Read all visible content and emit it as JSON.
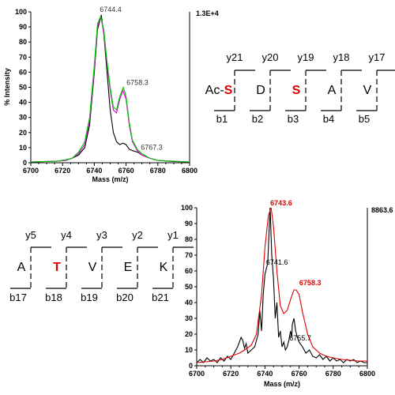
{
  "chart_data": [
    {
      "type": "line",
      "xlabel": "Mass (m/z)",
      "ylabel": "% Intensity",
      "scale_label": "1.3E+4",
      "xlim": [
        6700,
        6800
      ],
      "ylim": [
        0,
        100
      ],
      "x_ticks": [
        "6700",
        "6720",
        "6740",
        "6760",
        "6780",
        "6800"
      ],
      "y_ticks": [
        "0",
        "10",
        "20",
        "30",
        "40",
        "50",
        "60",
        "70",
        "80",
        "90",
        "100"
      ],
      "series": [
        {
          "color": "#000000",
          "points": [
            [
              6700,
              0.5
            ],
            [
              6716,
              1
            ],
            [
              6722,
              1.5
            ],
            [
              6726,
              3
            ],
            [
              6730,
              5
            ],
            [
              6734,
              10
            ],
            [
              6737,
              25
            ],
            [
              6740,
              60
            ],
            [
              6742,
              88
            ],
            [
              6744.4,
              98
            ],
            [
              6746,
              85
            ],
            [
              6748,
              60
            ],
            [
              6750,
              35
            ],
            [
              6752,
              20
            ],
            [
              6754,
              14
            ],
            [
              6756,
              12
            ],
            [
              6758,
              13
            ],
            [
              6760,
              12
            ],
            [
              6762,
              9
            ],
            [
              6764,
              8
            ],
            [
              6767.3,
              7
            ],
            [
              6770,
              5
            ],
            [
              6775,
              3
            ],
            [
              6780,
              1.5
            ],
            [
              6790,
              0.8
            ],
            [
              6800,
              0.5
            ]
          ]
        },
        {
          "color": "#dd00dd",
          "points": [
            [
              6700,
              0.5
            ],
            [
              6716,
              1
            ],
            [
              6722,
              1.5
            ],
            [
              6726,
              3
            ],
            [
              6730,
              6
            ],
            [
              6734,
              12
            ],
            [
              6737,
              28
            ],
            [
              6740,
              62
            ],
            [
              6742,
              90
            ],
            [
              6744,
              97
            ],
            [
              6746,
              86
            ],
            [
              6748,
              65
            ],
            [
              6750,
              48
            ],
            [
              6752,
              35
            ],
            [
              6754,
              33
            ],
            [
              6756,
              42
            ],
            [
              6758,
              48
            ],
            [
              6760,
              42
            ],
            [
              6762,
              25
            ],
            [
              6764,
              14
            ],
            [
              6767,
              8
            ],
            [
              6770,
              5
            ],
            [
              6775,
              3
            ],
            [
              6780,
              1.5
            ],
            [
              6800,
              0.5
            ]
          ]
        },
        {
          "color": "#00cc00",
          "points": [
            [
              6700,
              0.5
            ],
            [
              6716,
              1
            ],
            [
              6722,
              2
            ],
            [
              6726,
              3
            ],
            [
              6730,
              7
            ],
            [
              6734,
              14
            ],
            [
              6737,
              30
            ],
            [
              6740,
              65
            ],
            [
              6742,
              92
            ],
            [
              6744,
              97
            ],
            [
              6746,
              88
            ],
            [
              6748,
              67
            ],
            [
              6750,
              50
            ],
            [
              6752,
              37
            ],
            [
              6754,
              35
            ],
            [
              6756,
              44
            ],
            [
              6758.3,
              50
            ],
            [
              6760,
              44
            ],
            [
              6762,
              27
            ],
            [
              6764,
              15
            ],
            [
              6767,
              9
            ],
            [
              6770,
              6
            ],
            [
              6775,
              3
            ],
            [
              6780,
              1.5
            ],
            [
              6800,
              0.5
            ]
          ]
        }
      ],
      "annotations": [
        {
          "text": "6744.4",
          "x": 6744.4,
          "y": 98
        },
        {
          "text": "6758.3",
          "x": 6758.3,
          "y": 50
        },
        {
          "text": "6767.3",
          "x": 6767.3,
          "y": 7
        }
      ]
    },
    {
      "type": "line",
      "xlabel": "Mass (m/z)",
      "ylabel": "",
      "scale_label": "8863.6",
      "xlim": [
        6700,
        6800
      ],
      "ylim": [
        0,
        100
      ],
      "x_ticks": [
        "6700",
        "6720",
        "6740",
        "6760",
        "6780",
        "6800"
      ],
      "y_ticks": [
        "0",
        "10",
        "20",
        "30",
        "40",
        "50",
        "60",
        "70",
        "80",
        "90",
        "100"
      ],
      "series": [
        {
          "color": "#000000",
          "points": [
            [
              6700,
              2
            ],
            [
              6702,
              4
            ],
            [
              6704,
              2
            ],
            [
              6706,
              5
            ],
            [
              6708,
              3
            ],
            [
              6710,
              4
            ],
            [
              6712,
              2
            ],
            [
              6714,
              5
            ],
            [
              6716,
              3
            ],
            [
              6718,
              6
            ],
            [
              6720,
              4
            ],
            [
              6722,
              8
            ],
            [
              6724,
              12
            ],
            [
              6726,
              18
            ],
            [
              6727,
              16
            ],
            [
              6728,
              11
            ],
            [
              6729,
              14
            ],
            [
              6730,
              8
            ],
            [
              6732,
              10
            ],
            [
              6734,
              12
            ],
            [
              6736,
              20
            ],
            [
              6737,
              35
            ],
            [
              6738,
              22
            ],
            [
              6739,
              45
            ],
            [
              6740,
              58
            ],
            [
              6741.6,
              65
            ],
            [
              6743,
              100
            ],
            [
              6744,
              70
            ],
            [
              6745,
              55
            ],
            [
              6746,
              30
            ],
            [
              6747,
              40
            ],
            [
              6748,
              18
            ],
            [
              6749,
              22
            ],
            [
              6750,
              12
            ],
            [
              6751,
              15
            ],
            [
              6752,
              10
            ],
            [
              6753,
              12
            ],
            [
              6754,
              16
            ],
            [
              6755,
              22
            ],
            [
              6755.7,
              18
            ],
            [
              6756,
              26
            ],
            [
              6757,
              30
            ],
            [
              6758,
              22
            ],
            [
              6759,
              18
            ],
            [
              6760,
              15
            ],
            [
              6762,
              12
            ],
            [
              6764,
              8
            ],
            [
              6766,
              10
            ],
            [
              6768,
              6
            ],
            [
              6770,
              5
            ],
            [
              6772,
              7
            ],
            [
              6774,
              4
            ],
            [
              6776,
              6
            ],
            [
              6778,
              3
            ],
            [
              6780,
              5
            ],
            [
              6782,
              3
            ],
            [
              6784,
              4
            ],
            [
              6786,
              2
            ],
            [
              6788,
              4
            ],
            [
              6790,
              3
            ],
            [
              6792,
              4
            ],
            [
              6794,
              2
            ],
            [
              6796,
              3
            ],
            [
              6798,
              2
            ],
            [
              6800,
              2
            ]
          ]
        },
        {
          "color": "#dd0000",
          "points": [
            [
              6700,
              2
            ],
            [
              6705,
              2.5
            ],
            [
              6710,
              3
            ],
            [
              6715,
              4
            ],
            [
              6720,
              6
            ],
            [
              6725,
              8
            ],
            [
              6728,
              10
            ],
            [
              6732,
              13
            ],
            [
              6735,
              20
            ],
            [
              6738,
              45
            ],
            [
              6740,
              75
            ],
            [
              6742,
              95
            ],
            [
              6743.6,
              100
            ],
            [
              6745,
              88
            ],
            [
              6747,
              60
            ],
            [
              6749,
              38
            ],
            [
              6751,
              33
            ],
            [
              6753,
              35
            ],
            [
              6755,
              42
            ],
            [
              6757,
              48
            ],
            [
              6758.3,
              48
            ],
            [
              6760,
              45
            ],
            [
              6762,
              34
            ],
            [
              6765,
              20
            ],
            [
              6768,
              12
            ],
            [
              6772,
              8
            ],
            [
              6776,
              6
            ],
            [
              6780,
              5
            ],
            [
              6785,
              4
            ],
            [
              6790,
              3.5
            ],
            [
              6795,
              3
            ],
            [
              6800,
              3
            ]
          ]
        }
      ],
      "annotations": [
        {
          "text": "6743.6",
          "x": 6743.6,
          "y": 100,
          "color": "#dd0000"
        },
        {
          "text": "6741.6",
          "x": 6741.6,
          "y": 65,
          "color": "#000000"
        },
        {
          "text": "6758.3",
          "x": 6758.3,
          "y": 48,
          "color": "#dd0000"
        },
        {
          "text": "6755.7",
          "x": 6755.7,
          "y": 18,
          "color": "#000000"
        }
      ]
    }
  ],
  "fragment_maps": [
    {
      "y_ions": [
        "y21",
        "y20",
        "y19",
        "y18",
        "y17"
      ],
      "residues": [
        {
          "prefix": "Ac-",
          "letter": "S",
          "color": "#dd0000"
        },
        {
          "prefix": "",
          "letter": "D",
          "color": "#000000"
        },
        {
          "prefix": "",
          "letter": "S",
          "color": "#dd0000"
        },
        {
          "prefix": "",
          "letter": "A",
          "color": "#000000"
        },
        {
          "prefix": "",
          "letter": "V",
          "color": "#000000"
        }
      ],
      "b_ions": [
        "b1",
        "b2",
        "b3",
        "b4",
        "b5"
      ]
    },
    {
      "y_ions": [
        "y5",
        "y4",
        "y3",
        "y2",
        "y1"
      ],
      "residues": [
        {
          "prefix": "",
          "letter": "A",
          "color": "#000000"
        },
        {
          "prefix": "",
          "letter": "T",
          "color": "#dd0000"
        },
        {
          "prefix": "",
          "letter": "V",
          "color": "#000000"
        },
        {
          "prefix": "",
          "letter": "E",
          "color": "#000000"
        },
        {
          "prefix": "",
          "letter": "K",
          "color": "#000000"
        }
      ],
      "b_ions": [
        "b17",
        "b18",
        "b19",
        "b20",
        "b21"
      ]
    }
  ]
}
